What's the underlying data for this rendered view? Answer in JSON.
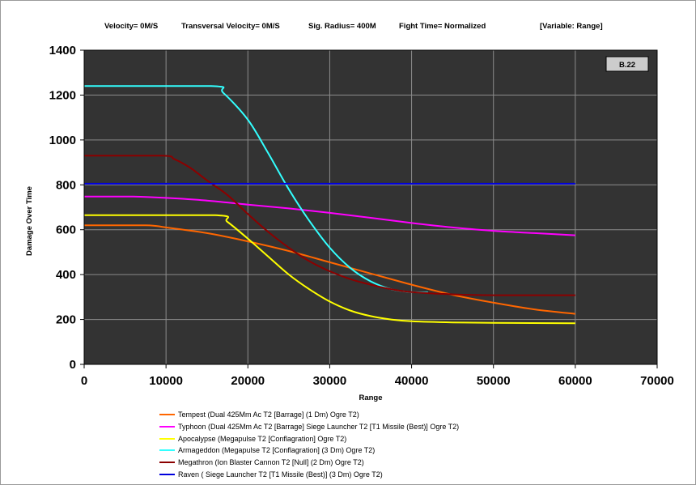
{
  "header": {
    "velocity": "Velocity= 0M/S",
    "transversal": "Transversal Velocity= 0M/S",
    "sig_radius": "Sig. Radius= 400M",
    "fight_time": "Fight Time= Normalized",
    "variable": "[Variable: Range]"
  },
  "badge": "B.22",
  "colors": {
    "plot_bg": "#333333",
    "grid": "#8c8c8c",
    "badge_bg": "#cccccc"
  },
  "chart_data": {
    "type": "line",
    "title": "",
    "xlabel": "Range",
    "ylabel": "Damage Over Time",
    "xlim": [
      0,
      70000
    ],
    "ylim": [
      0,
      1400
    ],
    "x_ticks": [
      "0",
      "10000",
      "20000",
      "30000",
      "40000",
      "50000",
      "60000",
      "70000"
    ],
    "y_ticks": [
      "0",
      "200",
      "400",
      "600",
      "800",
      "1000",
      "1200",
      "1400"
    ],
    "grid": true,
    "legend_position": "bottom",
    "series": [
      {
        "name": "Tempest (Dual 425Mm Ac T2 [Barrage] (1 Dm) Ogre T2)",
        "color": "#ff6600",
        "x": [
          0,
          7500,
          10000,
          15000,
          20000,
          25000,
          30000,
          35000,
          40000,
          45000,
          50000,
          55000,
          60000
        ],
        "y": [
          620,
          620,
          610,
          585,
          548,
          505,
          455,
          405,
          355,
          310,
          275,
          245,
          225
        ]
      },
      {
        "name": "Typhoon (Dual 425Mm Ac T2 [Barrage] Siege Launcher T2 [T1 Missile (Best)] Ogre T2)",
        "color": "#ff00ff",
        "x": [
          0,
          6000,
          10000,
          15000,
          20000,
          25000,
          30000,
          35000,
          40000,
          45000,
          50000,
          55000,
          60000
        ],
        "y": [
          748,
          748,
          742,
          730,
          712,
          695,
          675,
          653,
          630,
          610,
          595,
          585,
          575
        ]
      },
      {
        "name": "Apocalypse (Megapulse T2 [Conflagration] Ogre T2)",
        "color": "#ffff00",
        "x": [
          0,
          16000,
          17500,
          20000,
          22500,
          25000,
          27500,
          30000,
          32500,
          35000,
          37500,
          40000,
          45000,
          50000,
          60000
        ],
        "y": [
          665,
          665,
          635,
          560,
          480,
          400,
          335,
          280,
          240,
          215,
          200,
          192,
          187,
          185,
          183
        ]
      },
      {
        "name": "Armageddon (Megapulse T2 [Conflagration] (3 Dm) Ogre T2)",
        "color": "#33ffff",
        "x": [
          0,
          15500,
          17000,
          20000,
          22500,
          25000,
          27500,
          30000,
          32500,
          35000,
          37500,
          40000,
          42000
        ],
        "y": [
          1240,
          1240,
          1210,
          1090,
          940,
          780,
          640,
          520,
          430,
          370,
          335,
          322,
          320
        ]
      },
      {
        "name": "Megathron (Ion Blaster Cannon T2 [Null] (2 Dm) Ogre T2)",
        "color": "#8b0000",
        "x": [
          0,
          9500,
          11000,
          13000,
          15000,
          17500,
          20000,
          22500,
          25000,
          27500,
          30000,
          32500,
          35000,
          37500,
          40000,
          45000,
          50000,
          60000
        ],
        "y": [
          930,
          930,
          915,
          875,
          820,
          755,
          670,
          590,
          520,
          460,
          415,
          380,
          355,
          335,
          322,
          312,
          308,
          308
        ]
      },
      {
        "name": "Raven ( Siege Launcher T2 [T1 Missile (Best)] (3 Dm) Ogre T2)",
        "color": "#0000dd",
        "x": [
          0,
          60000
        ],
        "y": [
          805,
          805
        ]
      }
    ]
  }
}
